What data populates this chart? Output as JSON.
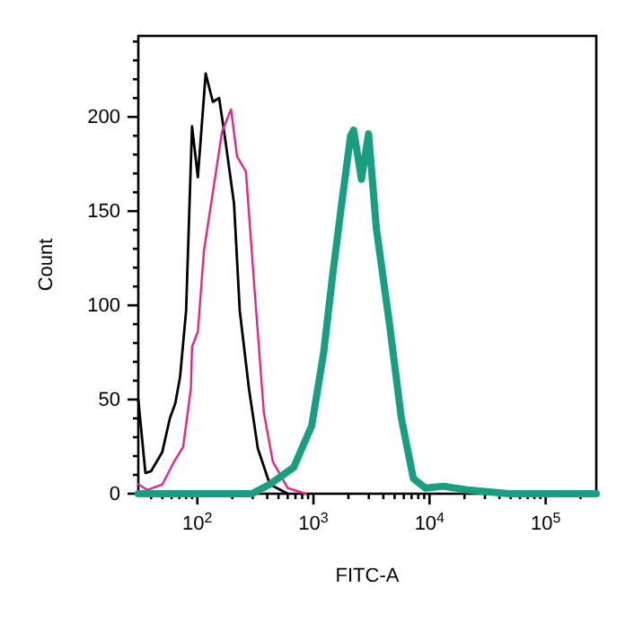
{
  "chart_data": {
    "type": "line",
    "xlabel": "FITC-A",
    "ylabel": "Count",
    "log": "x",
    "grid": false,
    "marker": "none",
    "line_style": "solid",
    "xlim": [
      31,
      273000
    ],
    "ylim": [
      0,
      243
    ],
    "xticks": [
      {
        "value": 40,
        "label": null
      },
      {
        "value": 50,
        "label": null
      },
      {
        "value": 60,
        "label": null
      },
      {
        "value": 70,
        "label": null
      },
      {
        "value": 80,
        "label": null
      },
      {
        "value": 90,
        "label": null
      },
      {
        "value": 100,
        "label": "10$^{2}$"
      },
      {
        "value": 200,
        "label": null
      },
      {
        "value": 300,
        "label": null
      },
      {
        "value": 400,
        "label": null
      },
      {
        "value": 500,
        "label": null
      },
      {
        "value": 600,
        "label": null
      },
      {
        "value": 700,
        "label": null
      },
      {
        "value": 800,
        "label": null
      },
      {
        "value": 900,
        "label": null
      },
      {
        "value": 1000,
        "label": "10$^{3}$"
      },
      {
        "value": 2000,
        "label": null
      },
      {
        "value": 3000,
        "label": null
      },
      {
        "value": 4000,
        "label": null
      },
      {
        "value": 5000,
        "label": null
      },
      {
        "value": 6000,
        "label": null
      },
      {
        "value": 7000,
        "label": null
      },
      {
        "value": 8000,
        "label": null
      },
      {
        "value": 9000,
        "label": null
      },
      {
        "value": 10000,
        "label": "10$^{4}$"
      },
      {
        "value": 20000,
        "label": null
      },
      {
        "value": 30000,
        "label": null
      },
      {
        "value": 40000,
        "label": null
      },
      {
        "value": 50000,
        "label": null
      },
      {
        "value": 60000,
        "label": null
      },
      {
        "value": 70000,
        "label": null
      },
      {
        "value": 80000,
        "label": null
      },
      {
        "value": 90000,
        "label": null
      },
      {
        "value": 100000,
        "label": "10$^{5}$"
      },
      {
        "value": 200000,
        "label": null
      }
    ],
    "yticks": [
      0,
      {
        "value": 10,
        "label": null
      },
      {
        "value": 20,
        "label": null
      },
      {
        "value": 30,
        "label": null
      },
      {
        "value": 40,
        "label": null
      },
      50,
      {
        "value": 60,
        "label": null
      },
      {
        "value": 70,
        "label": null
      },
      {
        "value": 80,
        "label": null
      },
      {
        "value": 90,
        "label": null
      },
      100,
      {
        "value": 110,
        "label": null
      },
      {
        "value": 120,
        "label": null
      },
      {
        "value": 130,
        "label": null
      },
      {
        "value": 140,
        "label": null
      },
      150,
      {
        "value": 160,
        "label": null
      },
      {
        "value": 170,
        "label": null
      },
      {
        "value": 180,
        "label": null
      },
      {
        "value": 190,
        "label": null
      },
      200,
      {
        "value": 210,
        "label": null
      },
      {
        "value": 220,
        "label": null
      },
      {
        "value": 230,
        "label": null
      },
      {
        "value": 240,
        "label": null
      }
    ],
    "series": [
      {
        "color": "#000000",
        "x": [
          31,
          35.7,
          40,
          49.8,
          58,
          64.6,
          71,
          80,
          90,
          101,
          118,
          136,
          154,
          173,
          207,
          232,
          278,
          332,
          421,
          600
        ],
        "values": [
          50,
          11,
          12,
          22,
          40,
          48,
          62,
          97,
          195,
          168,
          223,
          208,
          210,
          189,
          154,
          97,
          56,
          24,
          5,
          0
        ]
      },
      {
        "color": "#e6248c",
        "x": [
          31,
          37,
          50,
          63,
          75.5,
          88,
          90,
          101,
          114,
          136,
          163,
          195,
          220,
          262,
          313,
          374,
          447,
          600,
          858
        ],
        "values": [
          5,
          2,
          5,
          17,
          25,
          56,
          78,
          86,
          129,
          160,
          192,
          204,
          179,
          171,
          106,
          43,
          17,
          3,
          0
        ]
      },
      {
        "color": "#1a9e82",
        "x": [
          31,
          295,
          421,
          676,
          966,
          1225,
          1463,
          1750,
          2090,
          2220,
          2590,
          2985,
          3480,
          4520,
          5720,
          7260,
          9210,
          13150,
          21100,
          48400,
          273000
        ],
        "values": [
          0,
          0,
          5,
          14,
          36,
          75,
          116,
          154,
          190,
          193,
          167,
          191,
          141,
          90,
          40,
          8,
          3,
          4,
          2,
          0,
          0
        ]
      }
    ]
  }
}
